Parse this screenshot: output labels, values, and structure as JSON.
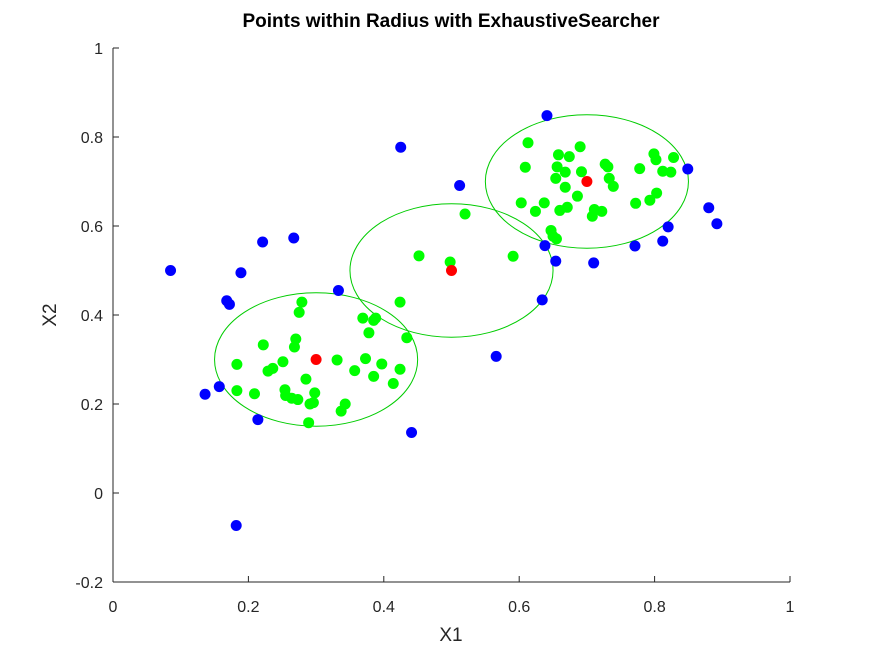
{
  "chart_data": {
    "type": "scatter",
    "title": "Points within Radius with ExhaustiveSearcher",
    "xlabel": "X1",
    "ylabel": "X2",
    "xlim": [
      0,
      1
    ],
    "ylim": [
      -0.2,
      1
    ],
    "xticks": [
      0,
      0.2,
      0.4,
      0.6,
      0.8,
      1
    ],
    "xtick_labels": [
      "0",
      "0.2",
      "0.4",
      "0.6",
      "0.8",
      "1"
    ],
    "yticks": [
      -0.2,
      0,
      0.2,
      0.4,
      0.6,
      0.8,
      1
    ],
    "ytick_labels": [
      "-0.2",
      "0",
      "0.2",
      "0.4",
      "0.6",
      "0.8",
      "1"
    ],
    "grid": false,
    "colors": {
      "blue": "#0000ff",
      "green": "#00ff00",
      "red": "#ff0000",
      "circle": "#00cc00"
    },
    "circles": [
      {
        "center": [
          0.3,
          0.3
        ],
        "radius": 0.15
      },
      {
        "center": [
          0.5,
          0.5
        ],
        "radius": 0.15
      },
      {
        "center": [
          0.7,
          0.7
        ],
        "radius": 0.15
      }
    ],
    "series": [
      {
        "color": "blue",
        "points": [
          [
            0.085,
            0.5
          ],
          [
            0.136,
            0.222
          ],
          [
            0.157,
            0.239
          ],
          [
            0.168,
            0.432
          ],
          [
            0.172,
            0.424
          ],
          [
            0.182,
            -0.073
          ],
          [
            0.189,
            0.495
          ],
          [
            0.214,
            0.165
          ],
          [
            0.221,
            0.564
          ],
          [
            0.267,
            0.573
          ],
          [
            0.333,
            0.455
          ],
          [
            0.425,
            0.777
          ],
          [
            0.441,
            0.136
          ],
          [
            0.512,
            0.691
          ],
          [
            0.566,
            0.307
          ],
          [
            0.634,
            0.434
          ],
          [
            0.638,
            0.556
          ],
          [
            0.641,
            0.848
          ],
          [
            0.654,
            0.521
          ],
          [
            0.71,
            0.517
          ],
          [
            0.771,
            0.555
          ],
          [
            0.812,
            0.566
          ],
          [
            0.82,
            0.598
          ],
          [
            0.849,
            0.728
          ],
          [
            0.88,
            0.641
          ],
          [
            0.892,
            0.605
          ]
        ]
      },
      {
        "color": "green",
        "points": [
          [
            0.183,
            0.289
          ],
          [
            0.183,
            0.23
          ],
          [
            0.209,
            0.223
          ],
          [
            0.222,
            0.333
          ],
          [
            0.229,
            0.274
          ],
          [
            0.236,
            0.28
          ],
          [
            0.251,
            0.295
          ],
          [
            0.254,
            0.232
          ],
          [
            0.255,
            0.219
          ],
          [
            0.264,
            0.213
          ],
          [
            0.268,
            0.328
          ],
          [
            0.27,
            0.346
          ],
          [
            0.273,
            0.21
          ],
          [
            0.275,
            0.406
          ],
          [
            0.279,
            0.429
          ],
          [
            0.285,
            0.256
          ],
          [
            0.289,
            0.158
          ],
          [
            0.291,
            0.2
          ],
          [
            0.296,
            0.203
          ],
          [
            0.298,
            0.225
          ],
          [
            0.331,
            0.299
          ],
          [
            0.337,
            0.184
          ],
          [
            0.343,
            0.2
          ],
          [
            0.357,
            0.275
          ],
          [
            0.369,
            0.393
          ],
          [
            0.373,
            0.302
          ],
          [
            0.378,
            0.36
          ],
          [
            0.385,
            0.262
          ],
          [
            0.385,
            0.388
          ],
          [
            0.388,
            0.393
          ],
          [
            0.397,
            0.29
          ],
          [
            0.414,
            0.246
          ],
          [
            0.424,
            0.429
          ],
          [
            0.424,
            0.278
          ],
          [
            0.434,
            0.349
          ],
          [
            0.452,
            0.533
          ],
          [
            0.498,
            0.519
          ],
          [
            0.52,
            0.627
          ],
          [
            0.591,
            0.532
          ],
          [
            0.603,
            0.652
          ],
          [
            0.609,
            0.732
          ],
          [
            0.613,
            0.787
          ],
          [
            0.624,
            0.633
          ],
          [
            0.637,
            0.652
          ],
          [
            0.647,
            0.59
          ],
          [
            0.65,
            0.577
          ],
          [
            0.654,
            0.707
          ],
          [
            0.655,
            0.571
          ],
          [
            0.656,
            0.733
          ],
          [
            0.658,
            0.76
          ],
          [
            0.66,
            0.635
          ],
          [
            0.668,
            0.687
          ],
          [
            0.668,
            0.721
          ],
          [
            0.671,
            0.642
          ],
          [
            0.674,
            0.756
          ],
          [
            0.686,
            0.667
          ],
          [
            0.69,
            0.778
          ],
          [
            0.692,
            0.722
          ],
          [
            0.708,
            0.622
          ],
          [
            0.711,
            0.637
          ],
          [
            0.722,
            0.633
          ],
          [
            0.727,
            0.739
          ],
          [
            0.731,
            0.733
          ],
          [
            0.733,
            0.707
          ],
          [
            0.739,
            0.689
          ],
          [
            0.772,
            0.651
          ],
          [
            0.778,
            0.729
          ],
          [
            0.793,
            0.658
          ],
          [
            0.799,
            0.762
          ],
          [
            0.802,
            0.749
          ],
          [
            0.803,
            0.674
          ],
          [
            0.812,
            0.723
          ],
          [
            0.824,
            0.721
          ],
          [
            0.828,
            0.754
          ]
        ]
      },
      {
        "color": "red",
        "points": [
          [
            0.3,
            0.3
          ],
          [
            0.5,
            0.5
          ],
          [
            0.7,
            0.7
          ]
        ]
      }
    ]
  }
}
